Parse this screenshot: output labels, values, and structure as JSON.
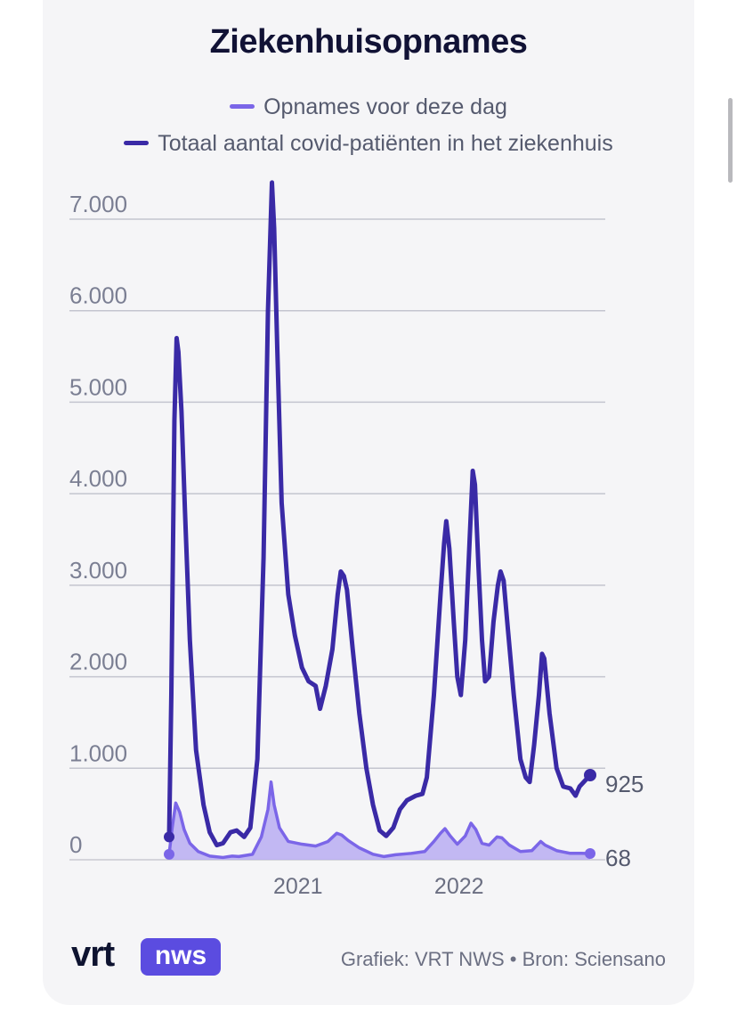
{
  "title": "Ziekenhuisopnames",
  "legend": [
    {
      "label": "Opnames voor deze dag",
      "color": "#7b66e8"
    },
    {
      "label": "Totaal aantal covid-patiënten in het ziekenhuis",
      "color": "#3a2aa6"
    }
  ],
  "footer": {
    "logo_vrt": "vrt",
    "logo_nws": "nws",
    "credit": "Grafiek: VRT NWS • Bron: Sciensano"
  },
  "chart_data": {
    "type": "line",
    "yticks": [
      "0",
      "1.000",
      "2.000",
      "3.000",
      "4.000",
      "5.000",
      "6.000",
      "7.000"
    ],
    "ytick_values": [
      0,
      1000,
      2000,
      3000,
      4000,
      5000,
      6000,
      7000
    ],
    "xticks": [
      "2021",
      "2022"
    ],
    "xtick_values": [
      "2021-01-01",
      "2022-01-01"
    ],
    "x_range": [
      "2020-03-15",
      "2022-10-25"
    ],
    "ylim": [
      0,
      7000
    ],
    "grid": true,
    "end_labels": {
      "total": "925",
      "admissions": "68"
    },
    "series": [
      {
        "name": "Totaal aantal covid-patiënten in het ziekenhuis",
        "color": "#3a2aa6",
        "points": [
          [
            "2020-03-15",
            250
          ],
          [
            "2020-03-20",
            1800
          ],
          [
            "2020-03-27",
            4800
          ],
          [
            "2020-04-01",
            5700
          ],
          [
            "2020-04-05",
            5550
          ],
          [
            "2020-04-12",
            4900
          ],
          [
            "2020-04-20",
            3800
          ],
          [
            "2020-05-01",
            2400
          ],
          [
            "2020-05-15",
            1200
          ],
          [
            "2020-06-01",
            600
          ],
          [
            "2020-06-15",
            300
          ],
          [
            "2020-07-01",
            160
          ],
          [
            "2020-07-15",
            180
          ],
          [
            "2020-08-01",
            300
          ],
          [
            "2020-08-15",
            320
          ],
          [
            "2020-09-01",
            250
          ],
          [
            "2020-09-15",
            350
          ],
          [
            "2020-10-01",
            1100
          ],
          [
            "2020-10-15",
            3300
          ],
          [
            "2020-10-25",
            6000
          ],
          [
            "2020-11-03",
            7400
          ],
          [
            "2020-11-08",
            6900
          ],
          [
            "2020-11-15",
            5600
          ],
          [
            "2020-11-25",
            3900
          ],
          [
            "2020-12-10",
            2900
          ],
          [
            "2020-12-25",
            2450
          ],
          [
            "2021-01-10",
            2100
          ],
          [
            "2021-01-25",
            1950
          ],
          [
            "2021-02-10",
            1900
          ],
          [
            "2021-02-20",
            1650
          ],
          [
            "2021-03-05",
            1900
          ],
          [
            "2021-03-20",
            2300
          ],
          [
            "2021-04-01",
            2900
          ],
          [
            "2021-04-08",
            3150
          ],
          [
            "2021-04-15",
            3100
          ],
          [
            "2021-04-22",
            2950
          ],
          [
            "2021-05-05",
            2300
          ],
          [
            "2021-05-20",
            1600
          ],
          [
            "2021-06-05",
            1000
          ],
          [
            "2021-06-20",
            600
          ],
          [
            "2021-07-05",
            320
          ],
          [
            "2021-07-20",
            260
          ],
          [
            "2021-08-05",
            350
          ],
          [
            "2021-08-20",
            550
          ],
          [
            "2021-09-05",
            650
          ],
          [
            "2021-09-25",
            700
          ],
          [
            "2021-10-10",
            720
          ],
          [
            "2021-10-20",
            900
          ],
          [
            "2021-11-05",
            1800
          ],
          [
            "2021-11-20",
            2900
          ],
          [
            "2021-11-28",
            3450
          ],
          [
            "2021-12-03",
            3700
          ],
          [
            "2021-12-10",
            3400
          ],
          [
            "2021-12-20",
            2600
          ],
          [
            "2021-12-28",
            2000
          ],
          [
            "2022-01-05",
            1800
          ],
          [
            "2022-01-15",
            2400
          ],
          [
            "2022-01-25",
            3500
          ],
          [
            "2022-02-01",
            4250
          ],
          [
            "2022-02-06",
            4100
          ],
          [
            "2022-02-14",
            3200
          ],
          [
            "2022-02-22",
            2400
          ],
          [
            "2022-03-01",
            1950
          ],
          [
            "2022-03-10",
            2000
          ],
          [
            "2022-03-20",
            2600
          ],
          [
            "2022-03-30",
            3000
          ],
          [
            "2022-04-05",
            3150
          ],
          [
            "2022-04-12",
            3050
          ],
          [
            "2022-04-22",
            2500
          ],
          [
            "2022-05-05",
            1800
          ],
          [
            "2022-05-20",
            1100
          ],
          [
            "2022-06-01",
            900
          ],
          [
            "2022-06-10",
            850
          ],
          [
            "2022-06-20",
            1250
          ],
          [
            "2022-07-01",
            1800
          ],
          [
            "2022-07-08",
            2250
          ],
          [
            "2022-07-13",
            2200
          ],
          [
            "2022-07-25",
            1600
          ],
          [
            "2022-08-10",
            1000
          ],
          [
            "2022-08-25",
            800
          ],
          [
            "2022-09-10",
            780
          ],
          [
            "2022-09-22",
            700
          ],
          [
            "2022-10-01",
            800
          ],
          [
            "2022-10-25",
            925
          ]
        ]
      },
      {
        "name": "Opnames voor deze dag",
        "color": "#7b66e8",
        "points": [
          [
            "2020-03-15",
            60
          ],
          [
            "2020-03-22",
            350
          ],
          [
            "2020-03-30",
            620
          ],
          [
            "2020-04-08",
            520
          ],
          [
            "2020-04-18",
            330
          ],
          [
            "2020-05-01",
            180
          ],
          [
            "2020-05-20",
            90
          ],
          [
            "2020-06-15",
            40
          ],
          [
            "2020-07-15",
            25
          ],
          [
            "2020-08-05",
            40
          ],
          [
            "2020-08-20",
            35
          ],
          [
            "2020-09-20",
            60
          ],
          [
            "2020-10-10",
            250
          ],
          [
            "2020-10-25",
            550
          ],
          [
            "2020-11-01",
            850
          ],
          [
            "2020-11-08",
            600
          ],
          [
            "2020-11-20",
            350
          ],
          [
            "2020-12-10",
            200
          ],
          [
            "2021-01-10",
            170
          ],
          [
            "2021-02-10",
            150
          ],
          [
            "2021-03-10",
            200
          ],
          [
            "2021-03-30",
            290
          ],
          [
            "2021-04-10",
            270
          ],
          [
            "2021-04-25",
            210
          ],
          [
            "2021-05-20",
            130
          ],
          [
            "2021-06-20",
            60
          ],
          [
            "2021-07-15",
            35
          ],
          [
            "2021-08-10",
            55
          ],
          [
            "2021-09-15",
            70
          ],
          [
            "2021-10-15",
            90
          ],
          [
            "2021-11-05",
            200
          ],
          [
            "2021-11-20",
            290
          ],
          [
            "2021-11-30",
            340
          ],
          [
            "2021-12-12",
            260
          ],
          [
            "2021-12-28",
            170
          ],
          [
            "2022-01-15",
            260
          ],
          [
            "2022-01-28",
            400
          ],
          [
            "2022-02-08",
            330
          ],
          [
            "2022-02-22",
            180
          ],
          [
            "2022-03-10",
            160
          ],
          [
            "2022-03-28",
            250
          ],
          [
            "2022-04-08",
            240
          ],
          [
            "2022-04-25",
            160
          ],
          [
            "2022-05-20",
            90
          ],
          [
            "2022-06-15",
            100
          ],
          [
            "2022-07-05",
            200
          ],
          [
            "2022-07-15",
            160
          ],
          [
            "2022-08-10",
            100
          ],
          [
            "2022-09-10",
            70
          ],
          [
            "2022-10-05",
            70
          ],
          [
            "2022-10-25",
            68
          ]
        ]
      }
    ]
  }
}
